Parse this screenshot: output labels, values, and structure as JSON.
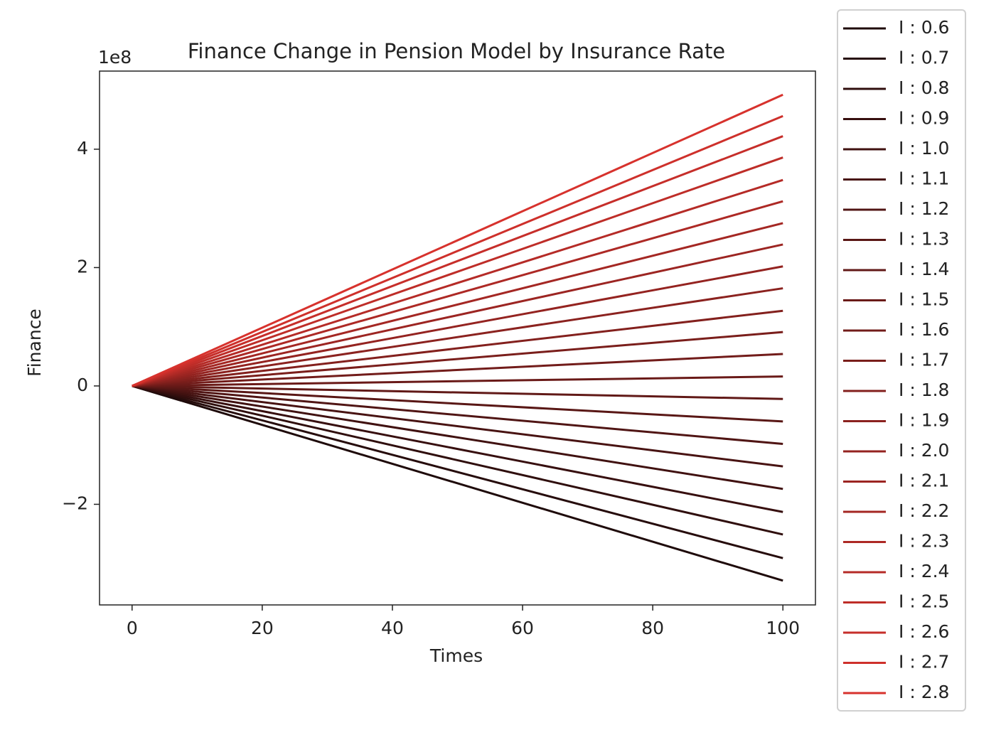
{
  "chart_data": {
    "type": "line",
    "title": "Finance Change in Pension Model by Insurance Rate",
    "x_label": "Times",
    "y_label": "Finance",
    "y_offset_label": "1e8",
    "x": [
      0,
      100
    ],
    "xlim": [
      -5,
      105
    ],
    "xticks": [
      0,
      20,
      40,
      60,
      80,
      100
    ],
    "ylim": [
      -3.7,
      5.32
    ],
    "yticks": [
      {
        "value": -2,
        "label": "−2"
      },
      0,
      2,
      4
    ],
    "grid": false,
    "legend": "outside right",
    "series": [
      {
        "name": "I : 0.6",
        "color": "#1e0a0a",
        "values": [
          0,
          -3.29
        ]
      },
      {
        "name": "I : 0.7",
        "color": "#260c0c",
        "values": [
          0,
          -2.91
        ]
      },
      {
        "name": "I : 0.8",
        "color": "#2f0e0d",
        "values": [
          0,
          -2.51
        ]
      },
      {
        "name": "I : 0.9",
        "color": "#370f0f",
        "values": [
          0,
          -2.13
        ]
      },
      {
        "name": "I : 1.0",
        "color": "#401110",
        "values": [
          0,
          -1.74
        ]
      },
      {
        "name": "I : 1.1",
        "color": "#481312",
        "values": [
          0,
          -1.36
        ]
      },
      {
        "name": "I : 1.2",
        "color": "#501514",
        "values": [
          0,
          -0.98
        ]
      },
      {
        "name": "I : 1.3",
        "color": "#591715",
        "values": [
          0,
          -0.6
        ]
      },
      {
        "name": "I : 1.4",
        "color": "#611917",
        "values": [
          0,
          -0.22
        ]
      },
      {
        "name": "I : 1.5",
        "color": "#6a1a18",
        "values": [
          0,
          0.16
        ]
      },
      {
        "name": "I : 1.6",
        "color": "#721c1a",
        "values": [
          0,
          0.54
        ]
      },
      {
        "name": "I : 1.7",
        "color": "#7a1e1b",
        "values": [
          0,
          0.91
        ]
      },
      {
        "name": "I : 1.8",
        "color": "#83201d",
        "values": [
          0,
          1.27
        ]
      },
      {
        "name": "I : 1.9",
        "color": "#8b221f",
        "values": [
          0,
          1.65
        ]
      },
      {
        "name": "I : 2.0",
        "color": "#942320",
        "values": [
          0,
          2.02
        ]
      },
      {
        "name": "I : 2.1",
        "color": "#9c2522",
        "values": [
          0,
          2.39
        ]
      },
      {
        "name": "I : 2.2",
        "color": "#a42723",
        "values": [
          0,
          2.75
        ]
      },
      {
        "name": "I : 2.3",
        "color": "#ad2925",
        "values": [
          0,
          3.12
        ]
      },
      {
        "name": "I : 2.4",
        "color": "#b52b27",
        "values": [
          0,
          3.48
        ]
      },
      {
        "name": "I : 2.5",
        "color": "#be2d28",
        "values": [
          0,
          3.86
        ]
      },
      {
        "name": "I : 2.6",
        "color": "#c62e2a",
        "values": [
          0,
          4.22
        ]
      },
      {
        "name": "I : 2.7",
        "color": "#ce302b",
        "values": [
          0,
          4.56
        ]
      },
      {
        "name": "I : 2.8",
        "color": "#d7322d",
        "values": [
          0,
          4.92
        ]
      }
    ]
  }
}
